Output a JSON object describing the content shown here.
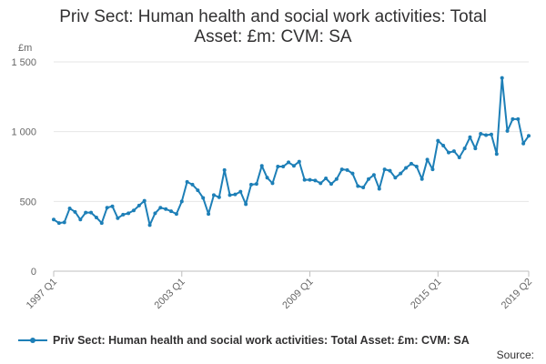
{
  "chart_data": {
    "type": "line",
    "title_lines": [
      "Priv Sect: Human health and social work activities: Total",
      "Asset: £m: CVM: SA"
    ],
    "unit": "£m",
    "ylim": [
      0,
      1500
    ],
    "yticks": [
      0,
      500,
      1000,
      1500
    ],
    "ytick_labels": [
      "0",
      "500",
      "1 000",
      "1 500"
    ],
    "xtick_labels": [
      {
        "label": "1997 Q1",
        "index": 0
      },
      {
        "label": "2003 Q1",
        "index": 24
      },
      {
        "label": "2009 Q1",
        "index": 48
      },
      {
        "label": "2015 Q1",
        "index": 72
      },
      {
        "label": "2019 Q2",
        "index": 89
      }
    ],
    "grid": "horizontal",
    "legend": "bottom",
    "color": "#1d7fb7",
    "series": [
      {
        "name": "Priv Sect: Human health and social work activities: Total Asset: £m: CVM: SA",
        "x": [
          "1997 Q1",
          "1997 Q2",
          "1997 Q3",
          "1997 Q4",
          "1998 Q1",
          "1998 Q2",
          "1998 Q3",
          "1998 Q4",
          "1999 Q1",
          "1999 Q2",
          "1999 Q3",
          "1999 Q4",
          "2000 Q1",
          "2000 Q2",
          "2000 Q3",
          "2000 Q4",
          "2001 Q1",
          "2001 Q2",
          "2001 Q3",
          "2001 Q4",
          "2002 Q1",
          "2002 Q2",
          "2002 Q3",
          "2002 Q4",
          "2003 Q1",
          "2003 Q2",
          "2003 Q3",
          "2003 Q4",
          "2004 Q1",
          "2004 Q2",
          "2004 Q3",
          "2004 Q4",
          "2005 Q1",
          "2005 Q2",
          "2005 Q3",
          "2005 Q4",
          "2006 Q1",
          "2006 Q2",
          "2006 Q3",
          "2006 Q4",
          "2007 Q1",
          "2007 Q2",
          "2007 Q3",
          "2007 Q4",
          "2008 Q1",
          "2008 Q2",
          "2008 Q3",
          "2008 Q4",
          "2009 Q1",
          "2009 Q2",
          "2009 Q3",
          "2009 Q4",
          "2010 Q1",
          "2010 Q2",
          "2010 Q3",
          "2010 Q4",
          "2011 Q1",
          "2011 Q2",
          "2011 Q3",
          "2011 Q4",
          "2012 Q1",
          "2012 Q2",
          "2012 Q3",
          "2012 Q4",
          "2013 Q1",
          "2013 Q2",
          "2013 Q3",
          "2013 Q4",
          "2014 Q1",
          "2014 Q2",
          "2014 Q3",
          "2014 Q4",
          "2015 Q1",
          "2015 Q2",
          "2015 Q3",
          "2015 Q4",
          "2016 Q1",
          "2016 Q2",
          "2016 Q3",
          "2016 Q4",
          "2017 Q1",
          "2017 Q2",
          "2017 Q3",
          "2017 Q4",
          "2018 Q1",
          "2018 Q2",
          "2018 Q3",
          "2018 Q4",
          "2019 Q1",
          "2019 Q2"
        ],
        "values": [
          370,
          345,
          350,
          450,
          425,
          370,
          420,
          420,
          385,
          345,
          455,
          465,
          380,
          405,
          415,
          435,
          470,
          505,
          330,
          415,
          455,
          445,
          430,
          410,
          500,
          640,
          620,
          580,
          525,
          410,
          545,
          530,
          725,
          545,
          550,
          570,
          480,
          620,
          625,
          755,
          670,
          630,
          750,
          750,
          780,
          755,
          785,
          655,
          655,
          650,
          630,
          665,
          625,
          660,
          730,
          725,
          700,
          610,
          600,
          660,
          690,
          590,
          730,
          720,
          670,
          700,
          740,
          770,
          750,
          660,
          800,
          730,
          935,
          900,
          850,
          860,
          815,
          880,
          960,
          880,
          985,
          975,
          980,
          840,
          1385,
          1005,
          1090,
          1090,
          915,
          970
        ]
      }
    ]
  },
  "legend_label": "Priv Sect: Human health and social work activities: Total Asset: £m: CVM: SA",
  "source_label": "Source:"
}
